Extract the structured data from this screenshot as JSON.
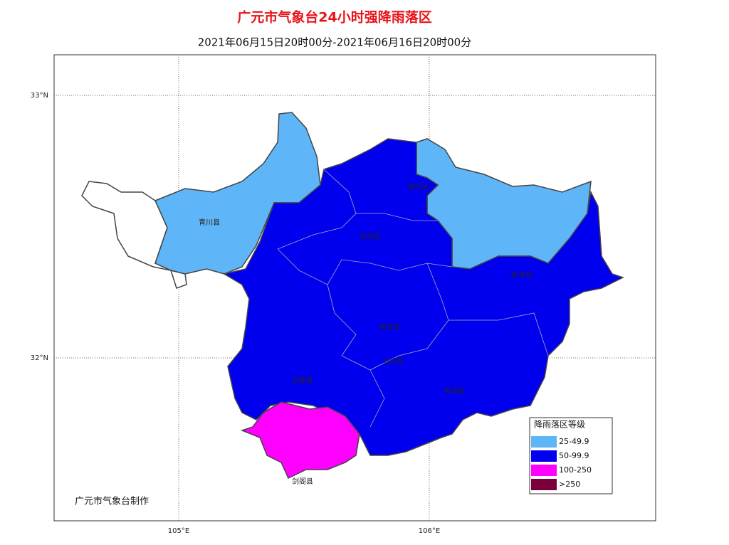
{
  "title": "广元市气象台24小时强降雨落区",
  "subtitle": "2021年06月15日20时00分-2021年06月16日20时00分",
  "lat_labels": [
    "33°N",
    "32°N"
  ],
  "lon_labels": [
    "105°E",
    "106°E"
  ],
  "counties": [
    "青川县",
    "朝天区",
    "利州区",
    "旺苍县",
    "昭化区",
    "元坝区",
    "剑阁县",
    "苍溪县",
    "剑阁县"
  ],
  "legend": {
    "title": "降雨落区等级",
    "items": [
      {
        "label": "25-49.9",
        "color": "#5eb5f7"
      },
      {
        "label": "50-99.9",
        "color": "#0000ee"
      },
      {
        "label": "100-250",
        "color": "#ff00ff"
      },
      {
        "label": ">250",
        "color": "#7a003a"
      }
    ]
  },
  "footer": "广元市气象台制作"
}
